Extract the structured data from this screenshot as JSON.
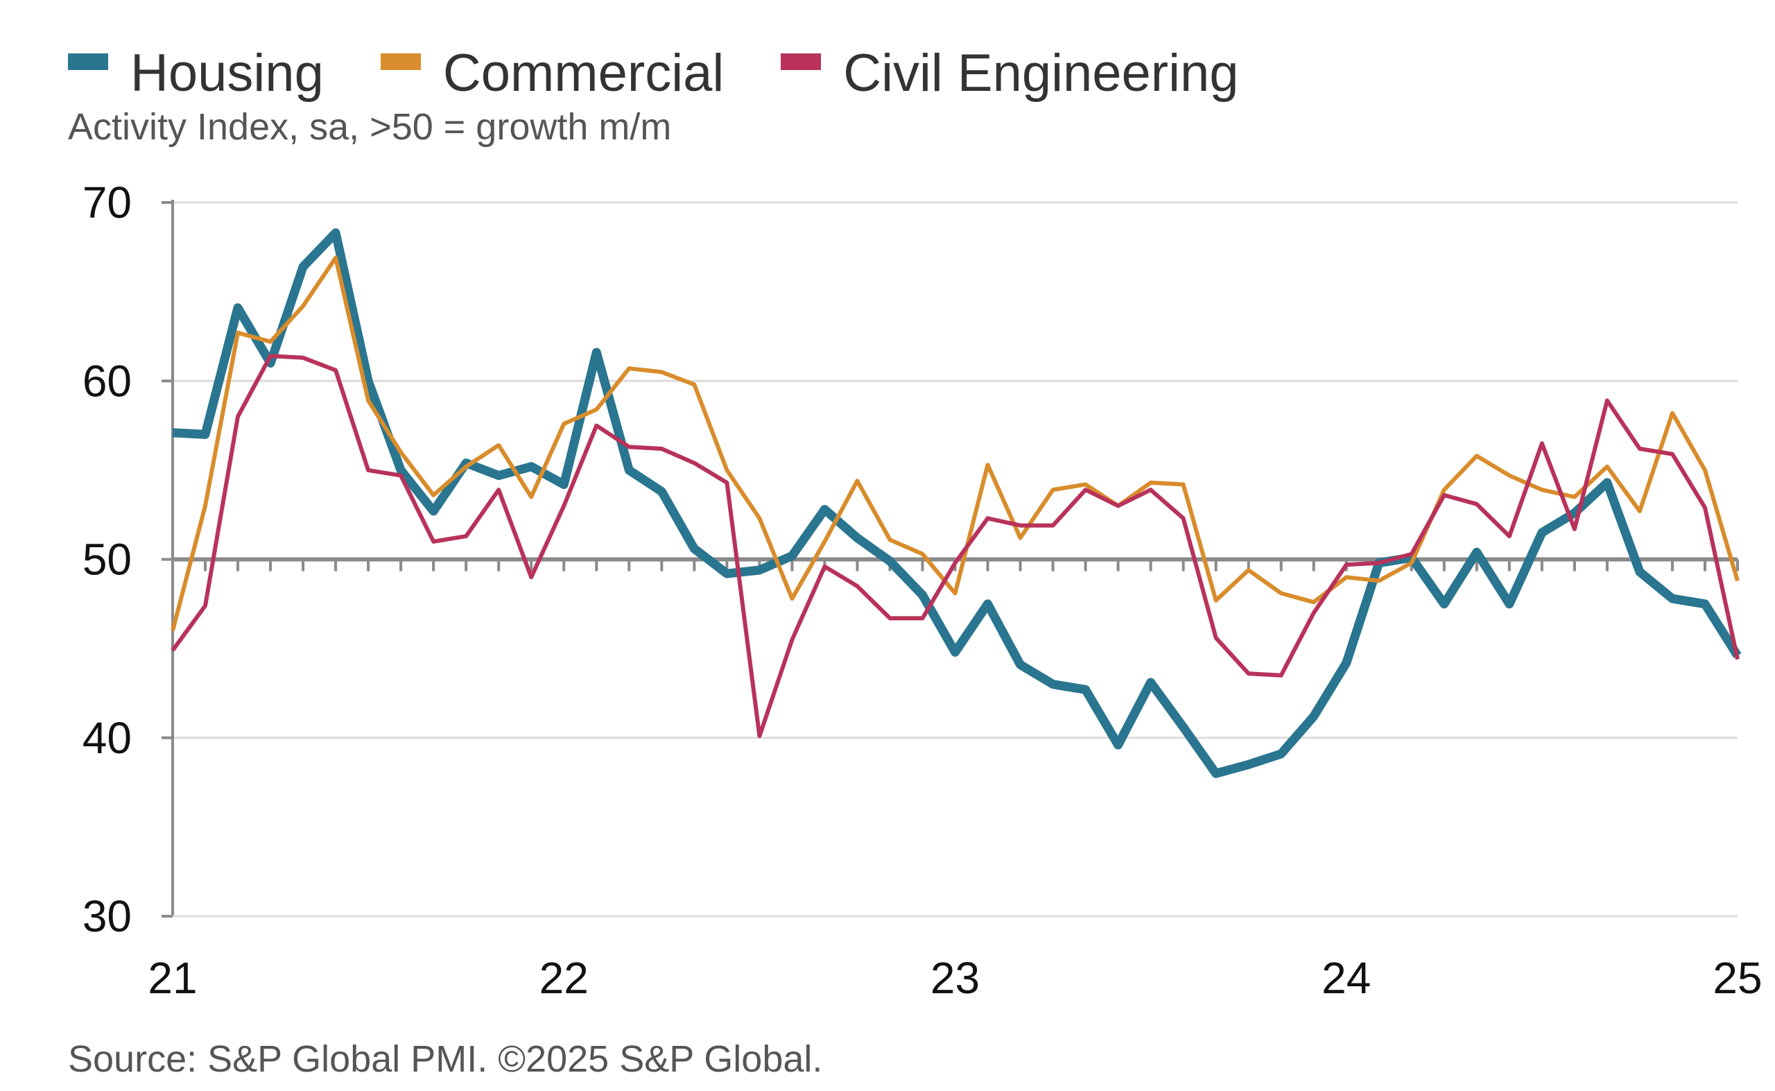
{
  "chart_data": {
    "type": "line",
    "subtitle": "Activity Index, sa, >50 = growth m/m",
    "source": "Source: S&P Global PMI. ©2025 S&P Global.",
    "ylim": [
      30,
      70
    ],
    "yticks": [
      "30",
      "40",
      "50",
      "60",
      "70"
    ],
    "xticks": [
      "21",
      "22",
      "23",
      "24",
      "25"
    ],
    "x_range": [
      "Jan 2021",
      "Jan 2025"
    ],
    "frequency": "monthly",
    "reference_line": 50,
    "grid": true,
    "legend": "top-left",
    "series": [
      {
        "name": "Housing",
        "color": "#2a7590",
        "values": [
          57.1,
          57.0,
          64.1,
          61.0,
          66.4,
          68.3,
          60.0,
          55.0,
          52.7,
          55.4,
          54.7,
          55.2,
          54.2,
          61.6,
          55.0,
          53.8,
          50.6,
          49.2,
          49.4,
          50.2,
          52.8,
          51.2,
          49.9,
          48.0,
          44.8,
          47.5,
          44.1,
          43.0,
          42.7,
          39.6,
          43.1,
          40.6,
          38.0,
          38.5,
          39.1,
          41.2,
          44.2,
          49.8,
          50.1,
          47.5,
          50.4,
          47.5,
          51.5,
          52.6,
          54.3,
          49.3,
          47.8,
          47.5,
          44.6
        ]
      },
      {
        "name": "Commercial",
        "color": "#d98c2b",
        "values": [
          46.0,
          53.0,
          62.7,
          62.2,
          64.2,
          66.9,
          58.9,
          56.0,
          53.6,
          55.2,
          56.4,
          53.5,
          57.6,
          58.4,
          60.7,
          60.5,
          59.8,
          55.0,
          52.3,
          47.8,
          51.0,
          54.4,
          51.1,
          50.3,
          48.1,
          55.3,
          51.2,
          53.9,
          54.2,
          53.0,
          54.3,
          54.2,
          47.7,
          49.4,
          48.1,
          47.6,
          49.0,
          48.8,
          49.8,
          53.9,
          55.8,
          54.7,
          53.9,
          53.5,
          55.2,
          52.7,
          58.2,
          55.0,
          48.8
        ]
      },
      {
        "name": "Civil Engineering",
        "color": "#b8325a",
        "values": [
          44.9,
          47.4,
          58.0,
          61.4,
          61.3,
          60.6,
          55.0,
          54.7,
          51.0,
          51.3,
          53.9,
          49.0,
          53.0,
          57.5,
          56.3,
          56.2,
          55.4,
          54.3,
          40.1,
          45.5,
          49.6,
          48.5,
          46.7,
          46.7,
          49.8,
          52.3,
          51.9,
          51.9,
          53.9,
          53.0,
          53.9,
          52.3,
          45.6,
          43.6,
          43.5,
          47.0,
          49.7,
          49.8,
          50.3,
          53.6,
          53.1,
          51.3,
          56.5,
          51.7,
          58.9,
          56.2,
          55.9,
          52.9,
          44.4
        ]
      }
    ]
  }
}
